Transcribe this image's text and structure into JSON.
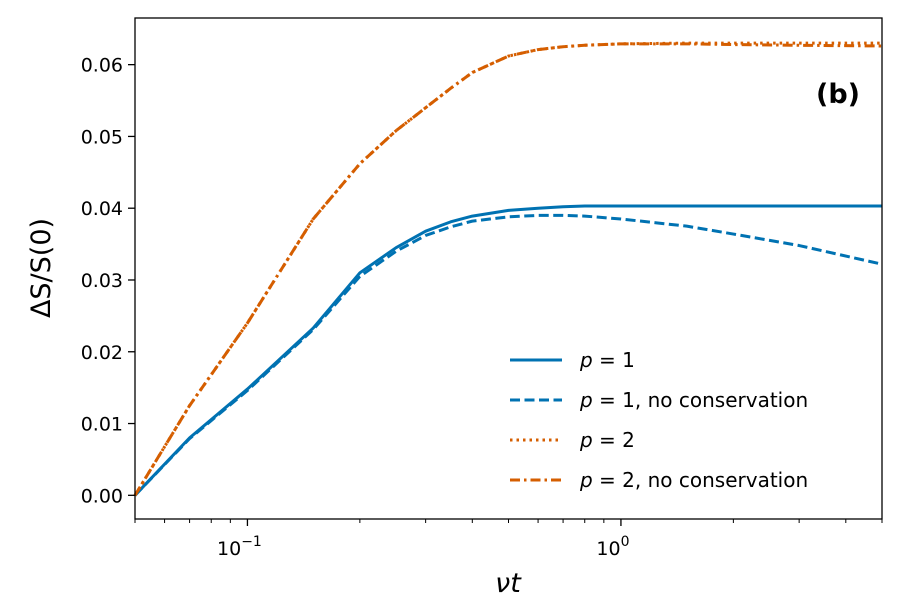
{
  "chart_data": {
    "type": "line",
    "panel_label": "(b)",
    "xlabel": "νt",
    "ylabel": "ΔS/S(0)",
    "xscale": "log",
    "xlim": [
      0.05,
      5.0
    ],
    "ylim": [
      -0.0033,
      0.0665
    ],
    "grid": false,
    "legend_placement": "lower-right",
    "x_ticks": [
      {
        "value": 0.1,
        "base": "10",
        "exp": "−1"
      },
      {
        "value": 1.0,
        "base": "10",
        "exp": "0"
      }
    ],
    "y_ticks": [
      {
        "value": 0.0,
        "label": "0.00"
      },
      {
        "value": 0.01,
        "label": "0.01"
      },
      {
        "value": 0.02,
        "label": "0.02"
      },
      {
        "value": 0.03,
        "label": "0.03"
      },
      {
        "value": 0.04,
        "label": "0.04"
      },
      {
        "value": 0.05,
        "label": "0.05"
      },
      {
        "value": 0.06,
        "label": "0.06"
      }
    ],
    "series": [
      {
        "name": "p = 1",
        "legend_italic": "p",
        "legend_rest": " = 1",
        "color": "#0072B2",
        "dash": "solid",
        "x": [
          0.05,
          0.07,
          0.1,
          0.15,
          0.2,
          0.25,
          0.3,
          0.35,
          0.4,
          0.5,
          0.6,
          0.7,
          0.8,
          1.0,
          1.5,
          2.0,
          3.0,
          5.0
        ],
        "y": [
          0.0,
          0.008,
          0.0148,
          0.0233,
          0.031,
          0.0345,
          0.0368,
          0.0381,
          0.0389,
          0.0397,
          0.04,
          0.0402,
          0.0403,
          0.0403,
          0.0403,
          0.0403,
          0.0403,
          0.0403
        ]
      },
      {
        "name": "p = 1, no conservation",
        "legend_italic": "p",
        "legend_rest": " = 1, no conservation",
        "color": "#0072B2",
        "dash": "dashed",
        "x": [
          0.05,
          0.07,
          0.1,
          0.15,
          0.2,
          0.25,
          0.3,
          0.35,
          0.4,
          0.5,
          0.6,
          0.7,
          0.8,
          1.0,
          1.5,
          2.0,
          3.0,
          5.0
        ],
        "y": [
          0.0,
          0.0079,
          0.0146,
          0.0231,
          0.0305,
          0.034,
          0.0362,
          0.0374,
          0.0382,
          0.0388,
          0.039,
          0.039,
          0.0389,
          0.0385,
          0.0375,
          0.0364,
          0.0348,
          0.0322
        ]
      },
      {
        "name": "p = 2",
        "legend_italic": "p",
        "legend_rest": " = 2",
        "color": "#D55E00",
        "dash": "dotted",
        "x": [
          0.05,
          0.07,
          0.1,
          0.15,
          0.2,
          0.25,
          0.3,
          0.35,
          0.4,
          0.5,
          0.6,
          0.7,
          0.8,
          1.0,
          1.5,
          2.0,
          3.0,
          5.0
        ],
        "y": [
          0.0,
          0.0125,
          0.024,
          0.0385,
          0.0462,
          0.0508,
          0.054,
          0.0567,
          0.0589,
          0.0612,
          0.0621,
          0.0625,
          0.0627,
          0.0629,
          0.063,
          0.063,
          0.063,
          0.063
        ]
      },
      {
        "name": "p = 2, no conservation",
        "legend_italic": "p",
        "legend_rest": " = 2, no conservation",
        "color": "#D55E00",
        "dash": "dashdot",
        "x": [
          0.05,
          0.07,
          0.1,
          0.15,
          0.2,
          0.25,
          0.3,
          0.35,
          0.4,
          0.5,
          0.6,
          0.7,
          0.8,
          1.0,
          1.5,
          2.0,
          3.0,
          5.0
        ],
        "y": [
          0.0,
          0.0125,
          0.024,
          0.0385,
          0.0462,
          0.0508,
          0.054,
          0.0567,
          0.0589,
          0.0612,
          0.0621,
          0.0625,
          0.0627,
          0.0629,
          0.0629,
          0.0628,
          0.0627,
          0.0626
        ]
      }
    ]
  }
}
